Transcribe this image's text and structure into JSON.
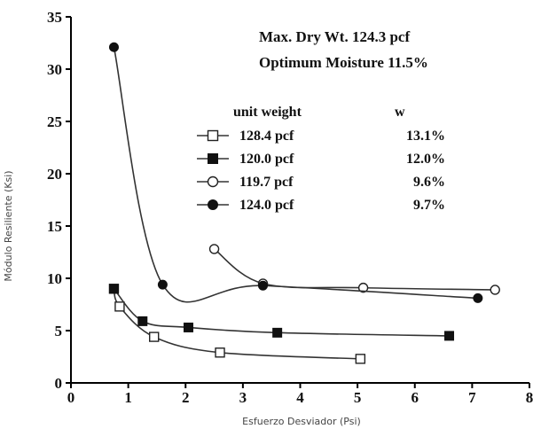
{
  "chart_data": {
    "type": "line",
    "title": "",
    "xlabel": "Esfuerzo Desviador (Psi)",
    "ylabel": "Módulo Resiliente (Ksi)",
    "xlim": [
      0,
      8
    ],
    "ylim": [
      0,
      35
    ],
    "xticks": [
      "0",
      "1",
      "2",
      "3",
      "4",
      "5",
      "6",
      "7",
      "8"
    ],
    "yticks": [
      "0",
      "5",
      "10",
      "15",
      "20",
      "25",
      "30",
      "35"
    ],
    "grid": false,
    "annotations": [
      {
        "text": "Max. Dry Wt. 124.3 pcf"
      },
      {
        "text": "Optimum Moisture 11.5%"
      }
    ],
    "legend": {
      "placement": "center-right",
      "header_unit_weight": "unit weight",
      "header_w": "w"
    },
    "series": [
      {
        "name": "128.4 pcf",
        "w": "13.1%",
        "marker": "square-open",
        "points": [
          [
            0.75,
            9.0
          ],
          [
            0.85,
            7.3
          ],
          [
            1.45,
            4.4
          ],
          [
            2.6,
            2.9
          ],
          [
            5.05,
            2.3
          ]
        ]
      },
      {
        "name": "120.0 pcf",
        "w": "12.0%",
        "marker": "square-filled",
        "points": [
          [
            0.75,
            9.0
          ],
          [
            1.25,
            5.9
          ],
          [
            2.05,
            5.3
          ],
          [
            3.6,
            4.8
          ],
          [
            6.6,
            4.5
          ]
        ]
      },
      {
        "name": "119.7 pcf",
        "w": "9.6%",
        "marker": "circle-open",
        "points": [
          [
            2.5,
            12.8
          ],
          [
            3.35,
            9.5
          ],
          [
            5.1,
            9.1
          ],
          [
            7.4,
            8.9
          ]
        ]
      },
      {
        "name": "124.0 pcf",
        "w": "9.7%",
        "marker": "circle-filled",
        "points": [
          [
            0.75,
            32.1
          ],
          [
            1.6,
            9.4
          ],
          [
            3.35,
            9.3
          ],
          [
            7.1,
            8.1
          ]
        ]
      }
    ]
  }
}
